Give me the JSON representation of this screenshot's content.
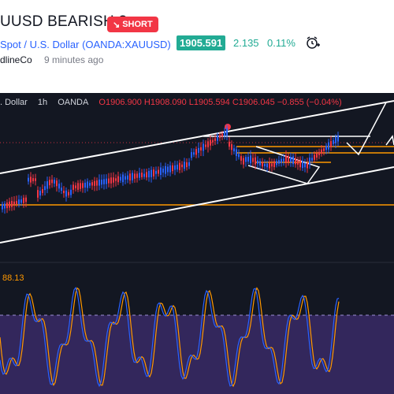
{
  "idea": {
    "title": "UUSD BEARISH ?",
    "badge": "SHORT",
    "badge_icon": "arrow-down-right-icon",
    "symbol_name": "Spot / U.S. Dollar",
    "symbol_exchange": "(OANDA:XAUUSD)",
    "price": "1905.591",
    "change": "2.135",
    "change_pct": "0.11%",
    "alert_icon": "alarm-clock-plus-icon",
    "author": "dlineCo",
    "time_ago": "9 minutes ago"
  },
  "chart": {
    "legend_symbol": ". Dollar",
    "legend_interval": "1h",
    "legend_exchange": "OANDA",
    "open": "O1906.900",
    "high": "H1908.090",
    "low": "L1905.594",
    "close": "C1906.045",
    "delta": "−0.855 (−0.04%)",
    "rsi_value": "88.13",
    "colors": {
      "background": "#131722",
      "bull": "#2962ff",
      "bear": "#f23645",
      "channel": "#ffffff",
      "level": "#ff9800",
      "rsi_fast": "#ff9800",
      "rsi_slow": "#2962ff",
      "rsi_zone": "#3a2a66"
    }
  }
}
